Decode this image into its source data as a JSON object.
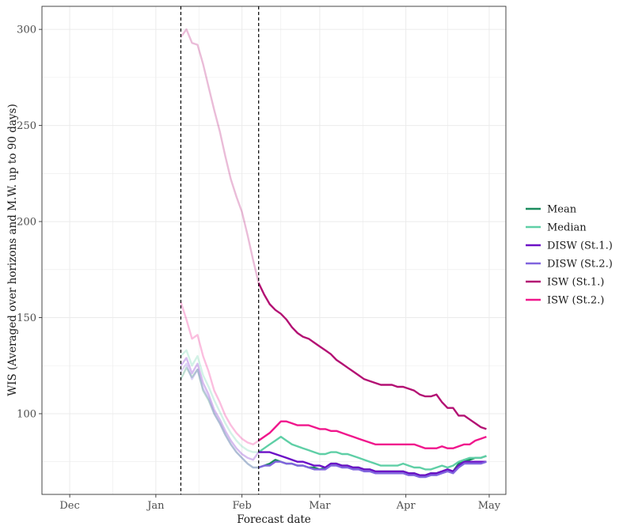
{
  "chart_data": {
    "type": "line",
    "xlabel": "Forecast date",
    "ylabel": "WIS (Averaged over horizons and M.W. up to 90 days)",
    "x_axis": {
      "type": "date",
      "range": [
        "2020-11-21",
        "2021-05-07"
      ],
      "ticks": [
        {
          "date": "2020-12-01",
          "label": "Dec"
        },
        {
          "date": "2021-01-01",
          "label": "Jan"
        },
        {
          "date": "2021-02-01",
          "label": "Feb"
        },
        {
          "date": "2021-03-01",
          "label": "Mar"
        },
        {
          "date": "2021-04-01",
          "label": "Apr"
        },
        {
          "date": "2021-05-01",
          "label": "May"
        }
      ]
    },
    "y_axis": {
      "range": [
        58,
        312
      ],
      "ticks": [
        100,
        150,
        200,
        250,
        300
      ]
    },
    "grid": true,
    "legend_position": "right",
    "reference_lines": [
      "2021-01-10",
      "2021-02-07"
    ],
    "dates": [
      "2021-01-10",
      "2021-01-12",
      "2021-01-14",
      "2021-01-16",
      "2021-01-18",
      "2021-01-20",
      "2021-01-22",
      "2021-01-24",
      "2021-01-26",
      "2021-01-28",
      "2021-01-30",
      "2021-02-01",
      "2021-02-03",
      "2021-02-05",
      "2021-02-07",
      "2021-02-09",
      "2021-02-11",
      "2021-02-13",
      "2021-02-15",
      "2021-02-17",
      "2021-02-19",
      "2021-02-21",
      "2021-02-23",
      "2021-02-25",
      "2021-02-27",
      "2021-03-01",
      "2021-03-03",
      "2021-03-05",
      "2021-03-07",
      "2021-03-09",
      "2021-03-11",
      "2021-03-13",
      "2021-03-15",
      "2021-03-17",
      "2021-03-19",
      "2021-03-21",
      "2021-03-23",
      "2021-03-25",
      "2021-03-27",
      "2021-03-29",
      "2021-03-31",
      "2021-04-02",
      "2021-04-04",
      "2021-04-06",
      "2021-04-08",
      "2021-04-10",
      "2021-04-12",
      "2021-04-14",
      "2021-04-16",
      "2021-04-18",
      "2021-04-20",
      "2021-04-22",
      "2021-04-24",
      "2021-04-26",
      "2021-04-28",
      "2021-04-30"
    ],
    "series": [
      {
        "name": "Mean",
        "color": "#1b8c5e",
        "values": [
          118,
          124,
          119,
          123,
          112,
          107,
          100,
          95,
          89,
          84,
          80,
          77,
          74,
          72,
          72,
          73,
          74,
          76,
          75,
          74,
          74,
          73,
          73,
          72,
          72,
          71,
          72,
          74,
          74,
          73,
          73,
          72,
          72,
          71,
          71,
          70,
          70,
          70,
          70,
          70,
          70,
          69,
          69,
          68,
          68,
          69,
          69,
          70,
          71,
          70,
          74,
          76,
          76,
          77,
          77,
          78
        ]
      },
      {
        "name": "Median",
        "color": "#5fcfa6",
        "values": [
          130,
          133,
          125,
          130,
          120,
          114,
          107,
          101,
          95,
          90,
          86,
          83,
          81,
          80,
          80,
          82,
          84,
          86,
          88,
          86,
          84,
          83,
          82,
          81,
          80,
          79,
          79,
          80,
          80,
          79,
          79,
          78,
          77,
          76,
          75,
          74,
          73,
          73,
          73,
          73,
          74,
          73,
          72,
          72,
          71,
          71,
          72,
          73,
          72,
          73,
          75,
          76,
          77,
          77,
          77,
          78
        ]
      },
      {
        "name": "DISW (St.1.)",
        "color": "#6c10c6",
        "values": [
          125,
          129,
          121,
          126,
          116,
          110,
          102,
          97,
          91,
          86,
          82,
          79,
          77,
          76,
          80,
          80,
          80,
          79,
          78,
          77,
          76,
          75,
          75,
          74,
          73,
          73,
          72,
          74,
          74,
          73,
          73,
          72,
          72,
          71,
          71,
          70,
          70,
          70,
          70,
          70,
          70,
          69,
          69,
          68,
          68,
          69,
          69,
          70,
          71,
          70,
          73,
          75,
          75,
          75,
          75,
          75
        ]
      },
      {
        "name": "DISW (St.2.)",
        "color": "#8064de",
        "values": [
          122,
          126,
          118,
          123,
          113,
          108,
          100,
          95,
          89,
          84,
          80,
          77,
          74,
          72,
          72,
          73,
          73,
          75,
          75,
          74,
          74,
          73,
          73,
          72,
          71,
          71,
          71,
          73,
          73,
          72,
          72,
          71,
          71,
          70,
          70,
          69,
          69,
          69,
          69,
          69,
          69,
          68,
          68,
          67,
          67,
          68,
          68,
          69,
          70,
          69,
          72,
          74,
          74,
          74,
          74,
          75
        ]
      },
      {
        "name": "ISW (St.1.)",
        "color": "#b31073",
        "values": [
          296,
          300,
          293,
          292,
          282,
          270,
          258,
          247,
          234,
          222,
          213,
          205,
          193,
          180,
          168,
          162,
          157,
          154,
          152,
          149,
          145,
          142,
          140,
          139,
          137,
          135,
          133,
          131,
          128,
          126,
          124,
          122,
          120,
          118,
          117,
          116,
          115,
          115,
          115,
          114,
          114,
          113,
          112,
          110,
          109,
          109,
          110,
          106,
          103,
          103,
          99,
          99,
          97,
          95,
          93,
          92
        ]
      },
      {
        "name": "ISW (St.2.)",
        "color": "#f0168c",
        "values": [
          158,
          149,
          139,
          141,
          130,
          122,
          112,
          106,
          99,
          94,
          90,
          87,
          85,
          84,
          86,
          88,
          90,
          93,
          96,
          96,
          95,
          94,
          94,
          94,
          93,
          92,
          92,
          91,
          91,
          90,
          89,
          88,
          87,
          86,
          85,
          84,
          84,
          84,
          84,
          84,
          84,
          84,
          84,
          83,
          82,
          82,
          82,
          83,
          82,
          82,
          83,
          84,
          84,
          86,
          87,
          88
        ]
      }
    ],
    "faded_until": "2021-02-07"
  }
}
